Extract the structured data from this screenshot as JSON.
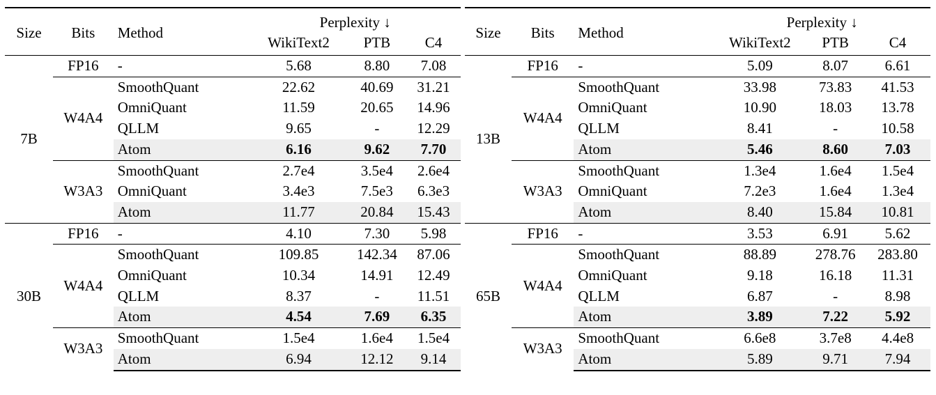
{
  "headers": {
    "size": "Size",
    "bits": "Bits",
    "method": "Method",
    "perplexity": "Perplexity ↓",
    "wikitext2": "WikiText2",
    "ptb": "PTB",
    "c4": "C4"
  },
  "panels": [
    {
      "blocks": [
        {
          "size": "7B",
          "groups": [
            {
              "bits": "FP16",
              "rows": [
                {
                  "method": "-",
                  "wikitext2": "5.68",
                  "ptb": "8.80",
                  "c4": "7.08"
                }
              ]
            },
            {
              "bits": "W4A4",
              "rows": [
                {
                  "method": "SmoothQuant",
                  "wikitext2": "22.62",
                  "ptb": "40.69",
                  "c4": "31.21"
                },
                {
                  "method": "OmniQuant",
                  "wikitext2": "11.59",
                  "ptb": "20.65",
                  "c4": "14.96"
                },
                {
                  "method": "QLLM",
                  "wikitext2": "9.65",
                  "ptb": "-",
                  "c4": "12.29"
                },
                {
                  "method": "Atom",
                  "wikitext2": "6.16",
                  "ptb": "9.62",
                  "c4": "7.70"
                }
              ]
            },
            {
              "bits": "W3A3",
              "rows": [
                {
                  "method": "SmoothQuant",
                  "wikitext2": "2.7e4",
                  "ptb": "3.5e4",
                  "c4": "2.6e4"
                },
                {
                  "method": "OmniQuant",
                  "wikitext2": "3.4e3",
                  "ptb": "7.5e3",
                  "c4": "6.3e3"
                },
                {
                  "method": "Atom",
                  "wikitext2": "11.77",
                  "ptb": "20.84",
                  "c4": "15.43"
                }
              ]
            }
          ]
        },
        {
          "size": "30B",
          "groups": [
            {
              "bits": "FP16",
              "rows": [
                {
                  "method": "-",
                  "wikitext2": "4.10",
                  "ptb": "7.30",
                  "c4": "5.98"
                }
              ]
            },
            {
              "bits": "W4A4",
              "rows": [
                {
                  "method": "SmoothQuant",
                  "wikitext2": "109.85",
                  "ptb": "142.34",
                  "c4": "87.06"
                },
                {
                  "method": "OmniQuant",
                  "wikitext2": "10.34",
                  "ptb": "14.91",
                  "c4": "12.49"
                },
                {
                  "method": "QLLM",
                  "wikitext2": "8.37",
                  "ptb": "-",
                  "c4": "11.51"
                },
                {
                  "method": "Atom",
                  "wikitext2": "4.54",
                  "ptb": "7.69",
                  "c4": "6.35"
                }
              ]
            },
            {
              "bits": "W3A3",
              "rows": [
                {
                  "method": "SmoothQuant",
                  "wikitext2": "1.5e4",
                  "ptb": "1.6e4",
                  "c4": "1.5e4"
                },
                {
                  "method": "Atom",
                  "wikitext2": "6.94",
                  "ptb": "12.12",
                  "c4": "9.14"
                }
              ]
            }
          ]
        }
      ]
    },
    {
      "blocks": [
        {
          "size": "13B",
          "groups": [
            {
              "bits": "FP16",
              "rows": [
                {
                  "method": "-",
                  "wikitext2": "5.09",
                  "ptb": "8.07",
                  "c4": "6.61"
                }
              ]
            },
            {
              "bits": "W4A4",
              "rows": [
                {
                  "method": "SmoothQuant",
                  "wikitext2": "33.98",
                  "ptb": "73.83",
                  "c4": "41.53"
                },
                {
                  "method": "OmniQuant",
                  "wikitext2": "10.90",
                  "ptb": "18.03",
                  "c4": "13.78"
                },
                {
                  "method": "QLLM",
                  "wikitext2": "8.41",
                  "ptb": "-",
                  "c4": "10.58"
                },
                {
                  "method": "Atom",
                  "wikitext2": "5.46",
                  "ptb": "8.60",
                  "c4": "7.03"
                }
              ]
            },
            {
              "bits": "W3A3",
              "rows": [
                {
                  "method": "SmoothQuant",
                  "wikitext2": "1.3e4",
                  "ptb": "1.6e4",
                  "c4": "1.5e4"
                },
                {
                  "method": "OmniQuant",
                  "wikitext2": "7.2e3",
                  "ptb": "1.6e4",
                  "c4": "1.3e4"
                },
                {
                  "method": "Atom",
                  "wikitext2": "8.40",
                  "ptb": "15.84",
                  "c4": "10.81"
                }
              ]
            }
          ]
        },
        {
          "size": "65B",
          "groups": [
            {
              "bits": "FP16",
              "rows": [
                {
                  "method": "-",
                  "wikitext2": "3.53",
                  "ptb": "6.91",
                  "c4": "5.62"
                }
              ]
            },
            {
              "bits": "W4A4",
              "rows": [
                {
                  "method": "SmoothQuant",
                  "wikitext2": "88.89",
                  "ptb": "278.76",
                  "c4": "283.80"
                },
                {
                  "method": "OmniQuant",
                  "wikitext2": "9.18",
                  "ptb": "16.18",
                  "c4": "11.31"
                },
                {
                  "method": "QLLM",
                  "wikitext2": "6.87",
                  "ptb": "-",
                  "c4": "8.98"
                },
                {
                  "method": "Atom",
                  "wikitext2": "3.89",
                  "ptb": "7.22",
                  "c4": "5.92"
                }
              ]
            },
            {
              "bits": "W3A3",
              "rows": [
                {
                  "method": "SmoothQuant",
                  "wikitext2": "6.6e8",
                  "ptb": "3.7e8",
                  "c4": "4.4e8"
                },
                {
                  "method": "Atom",
                  "wikitext2": "5.89",
                  "ptb": "9.71",
                  "c4": "7.94"
                }
              ]
            }
          ]
        }
      ]
    }
  ]
}
